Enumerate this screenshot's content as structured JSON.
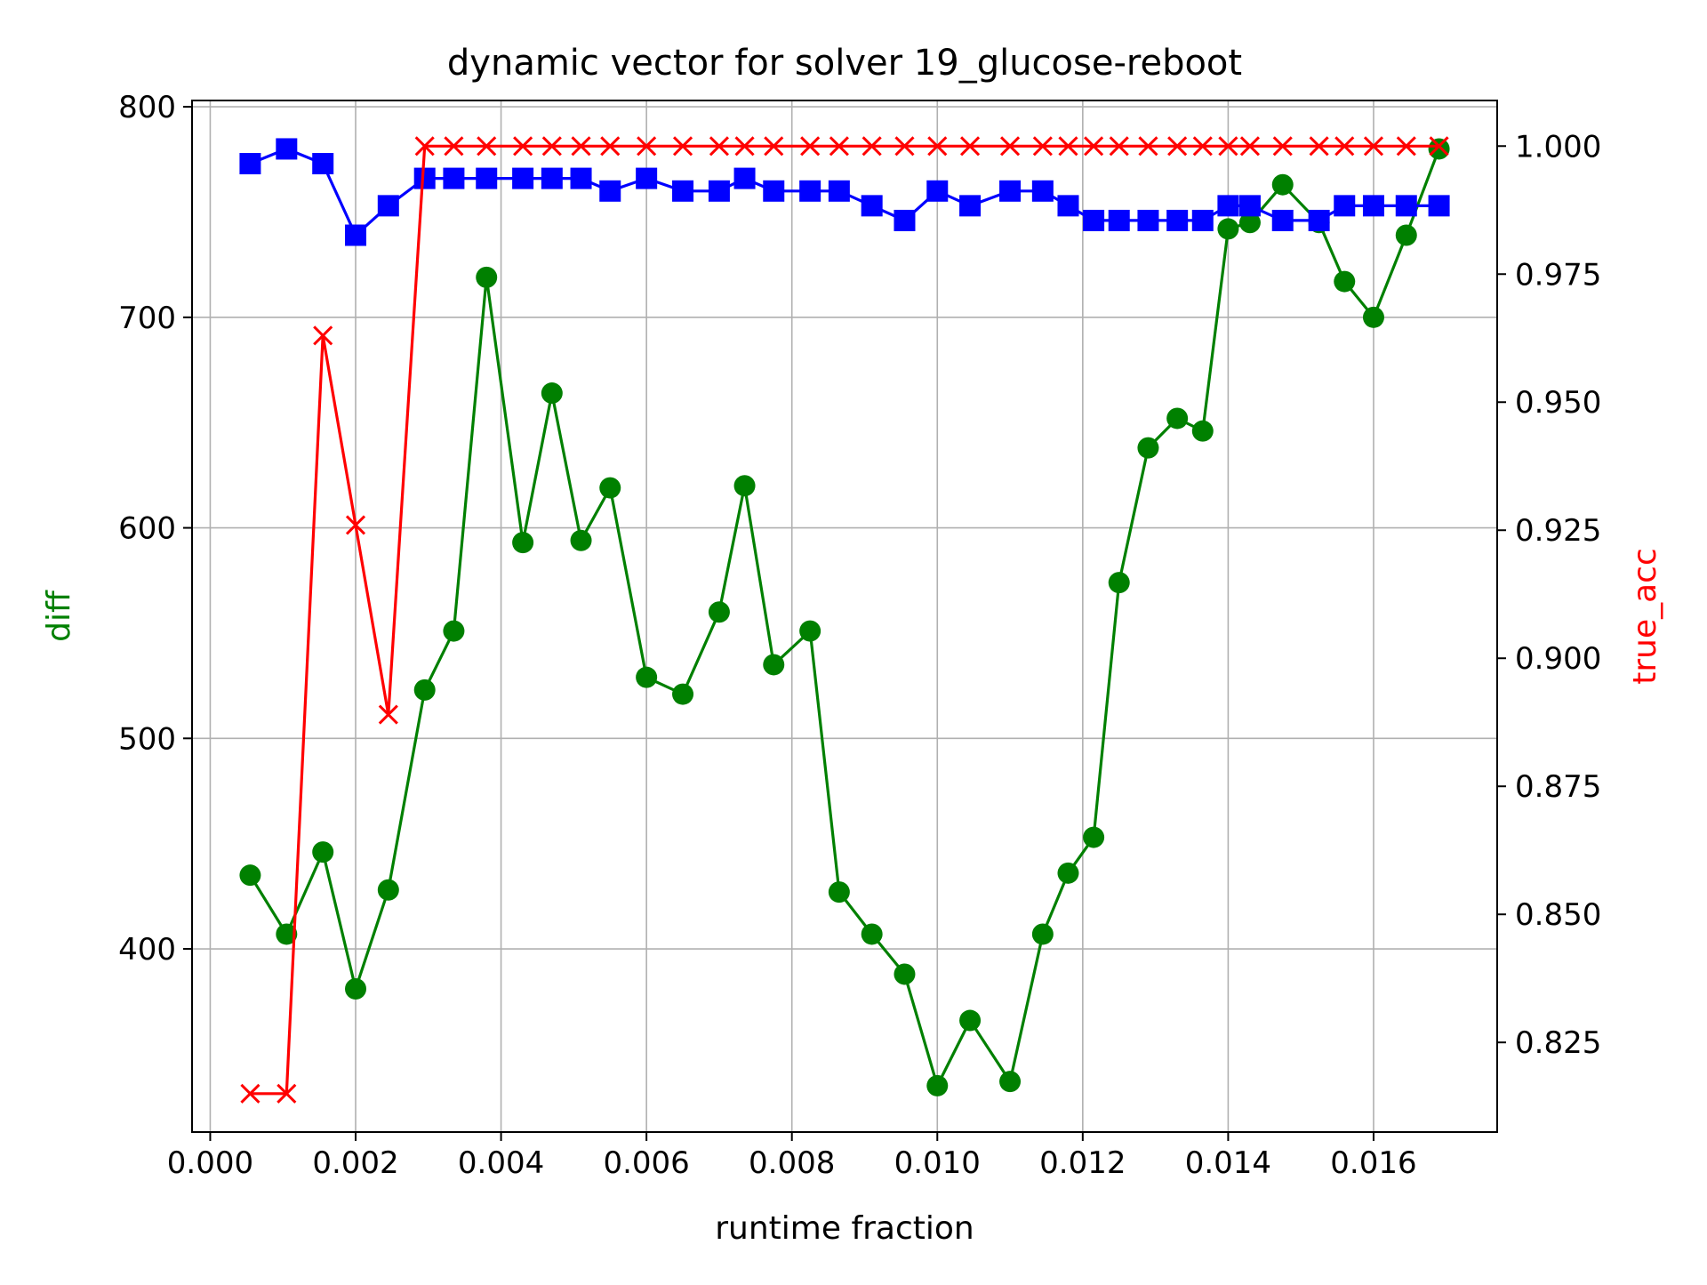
{
  "chart_data": {
    "type": "line",
    "title": "dynamic vector for solver 19_glucose-reboot",
    "xlabel": "runtime fraction",
    "ylabel": "diff",
    "y2label": "true_acc",
    "xlim": [
      -0.00025,
      0.0177
    ],
    "ylim": [
      313,
      803
    ],
    "y2lim": [
      0.8075,
      1.0089
    ],
    "xticks": [
      0.0,
      0.002,
      0.004,
      0.006,
      0.008,
      0.01,
      0.012,
      0.014,
      0.016
    ],
    "xtick_labels": [
      "0.000",
      "0.002",
      "0.004",
      "0.006",
      "0.008",
      "0.010",
      "0.012",
      "0.014",
      "0.016"
    ],
    "yticks": [
      400,
      500,
      600,
      700,
      800
    ],
    "ytick_labels": [
      "400",
      "500",
      "600",
      "700",
      "800"
    ],
    "y2ticks": [
      0.825,
      0.85,
      0.875,
      0.9,
      0.925,
      0.95,
      0.975,
      1.0
    ],
    "y2tick_labels": [
      "0.825",
      "0.850",
      "0.875",
      "0.900",
      "0.925",
      "0.950",
      "0.975",
      "1.000"
    ],
    "grid": true,
    "colors": {
      "diff": "#008000",
      "blue_series": "#0000ff",
      "true_acc": "#ff0000",
      "frame": "#000000",
      "grid": "#b0b0b0"
    },
    "x": [
      0.00055,
      0.00105,
      0.00155,
      0.002,
      0.00245,
      0.00295,
      0.00335,
      0.0038,
      0.0043,
      0.0047,
      0.0051,
      0.0055,
      0.006,
      0.0065,
      0.007,
      0.00735,
      0.00775,
      0.00825,
      0.00865,
      0.0091,
      0.00955,
      0.01,
      0.01045,
      0.011,
      0.01145,
      0.0118,
      0.01215,
      0.0125,
      0.0129,
      0.0133,
      0.01365,
      0.014,
      0.0143,
      0.01475,
      0.01525,
      0.0156,
      0.016,
      0.01645,
      0.0169
    ],
    "series": [
      {
        "axis": "left",
        "marker": "circle",
        "color": "#008000",
        "values": [
          435,
          407,
          446,
          381,
          428,
          523,
          551,
          719,
          593,
          664,
          594,
          619,
          529,
          521,
          560,
          620,
          535,
          551,
          427,
          407,
          388,
          335,
          366,
          337,
          407,
          436,
          453,
          574,
          638,
          652,
          646,
          742,
          745,
          763,
          745,
          717,
          700,
          739,
          780
        ]
      },
      {
        "axis": "left",
        "marker": "square",
        "color": "#0000ff",
        "values": [
          773,
          780,
          773,
          739,
          753,
          766,
          766,
          766,
          766,
          766,
          766,
          760,
          766,
          760,
          760,
          766,
          760,
          760,
          760,
          753,
          746,
          760,
          753,
          760,
          760,
          753,
          746,
          746,
          746,
          746,
          746,
          753,
          753,
          746,
          746,
          753,
          753,
          753,
          753
        ]
      },
      {
        "axis": "right",
        "marker": "x",
        "color": "#ff0000",
        "values": [
          0.815,
          0.815,
          0.963,
          0.926,
          0.889,
          1.0,
          1.0,
          1.0,
          1.0,
          1.0,
          1.0,
          1.0,
          1.0,
          1.0,
          1.0,
          1.0,
          1.0,
          1.0,
          1.0,
          1.0,
          1.0,
          1.0,
          1.0,
          1.0,
          1.0,
          1.0,
          1.0,
          1.0,
          1.0,
          1.0,
          1.0,
          1.0,
          1.0,
          1.0,
          1.0,
          1.0,
          1.0,
          1.0,
          1.0
        ]
      }
    ]
  }
}
